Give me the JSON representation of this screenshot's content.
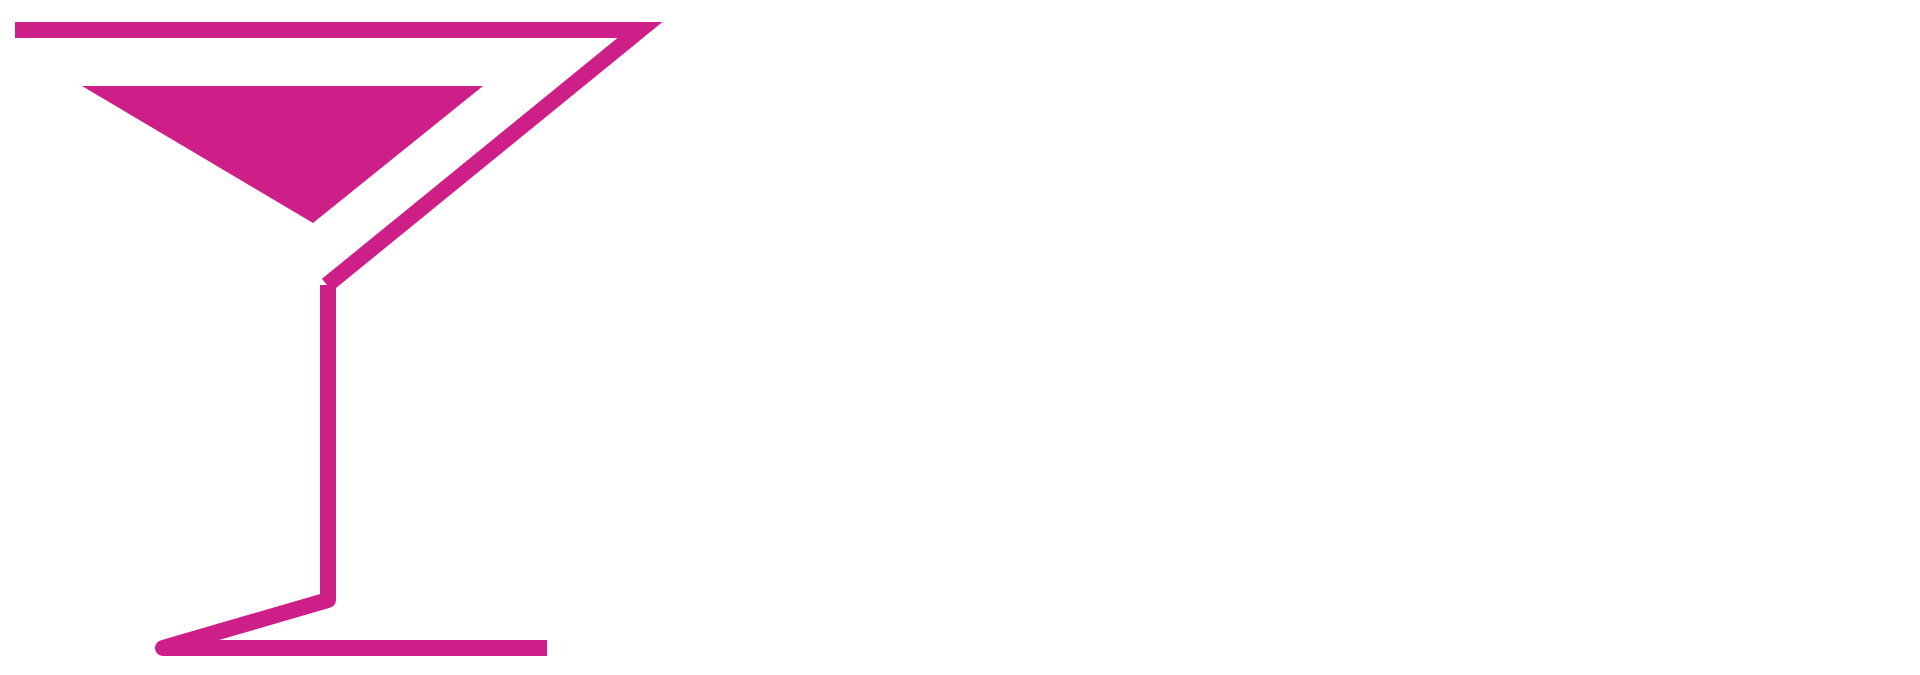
{
  "logo": {
    "icon": "martini-glass-icon",
    "color": "#CE1E87",
    "background": "#FFFFFF"
  }
}
